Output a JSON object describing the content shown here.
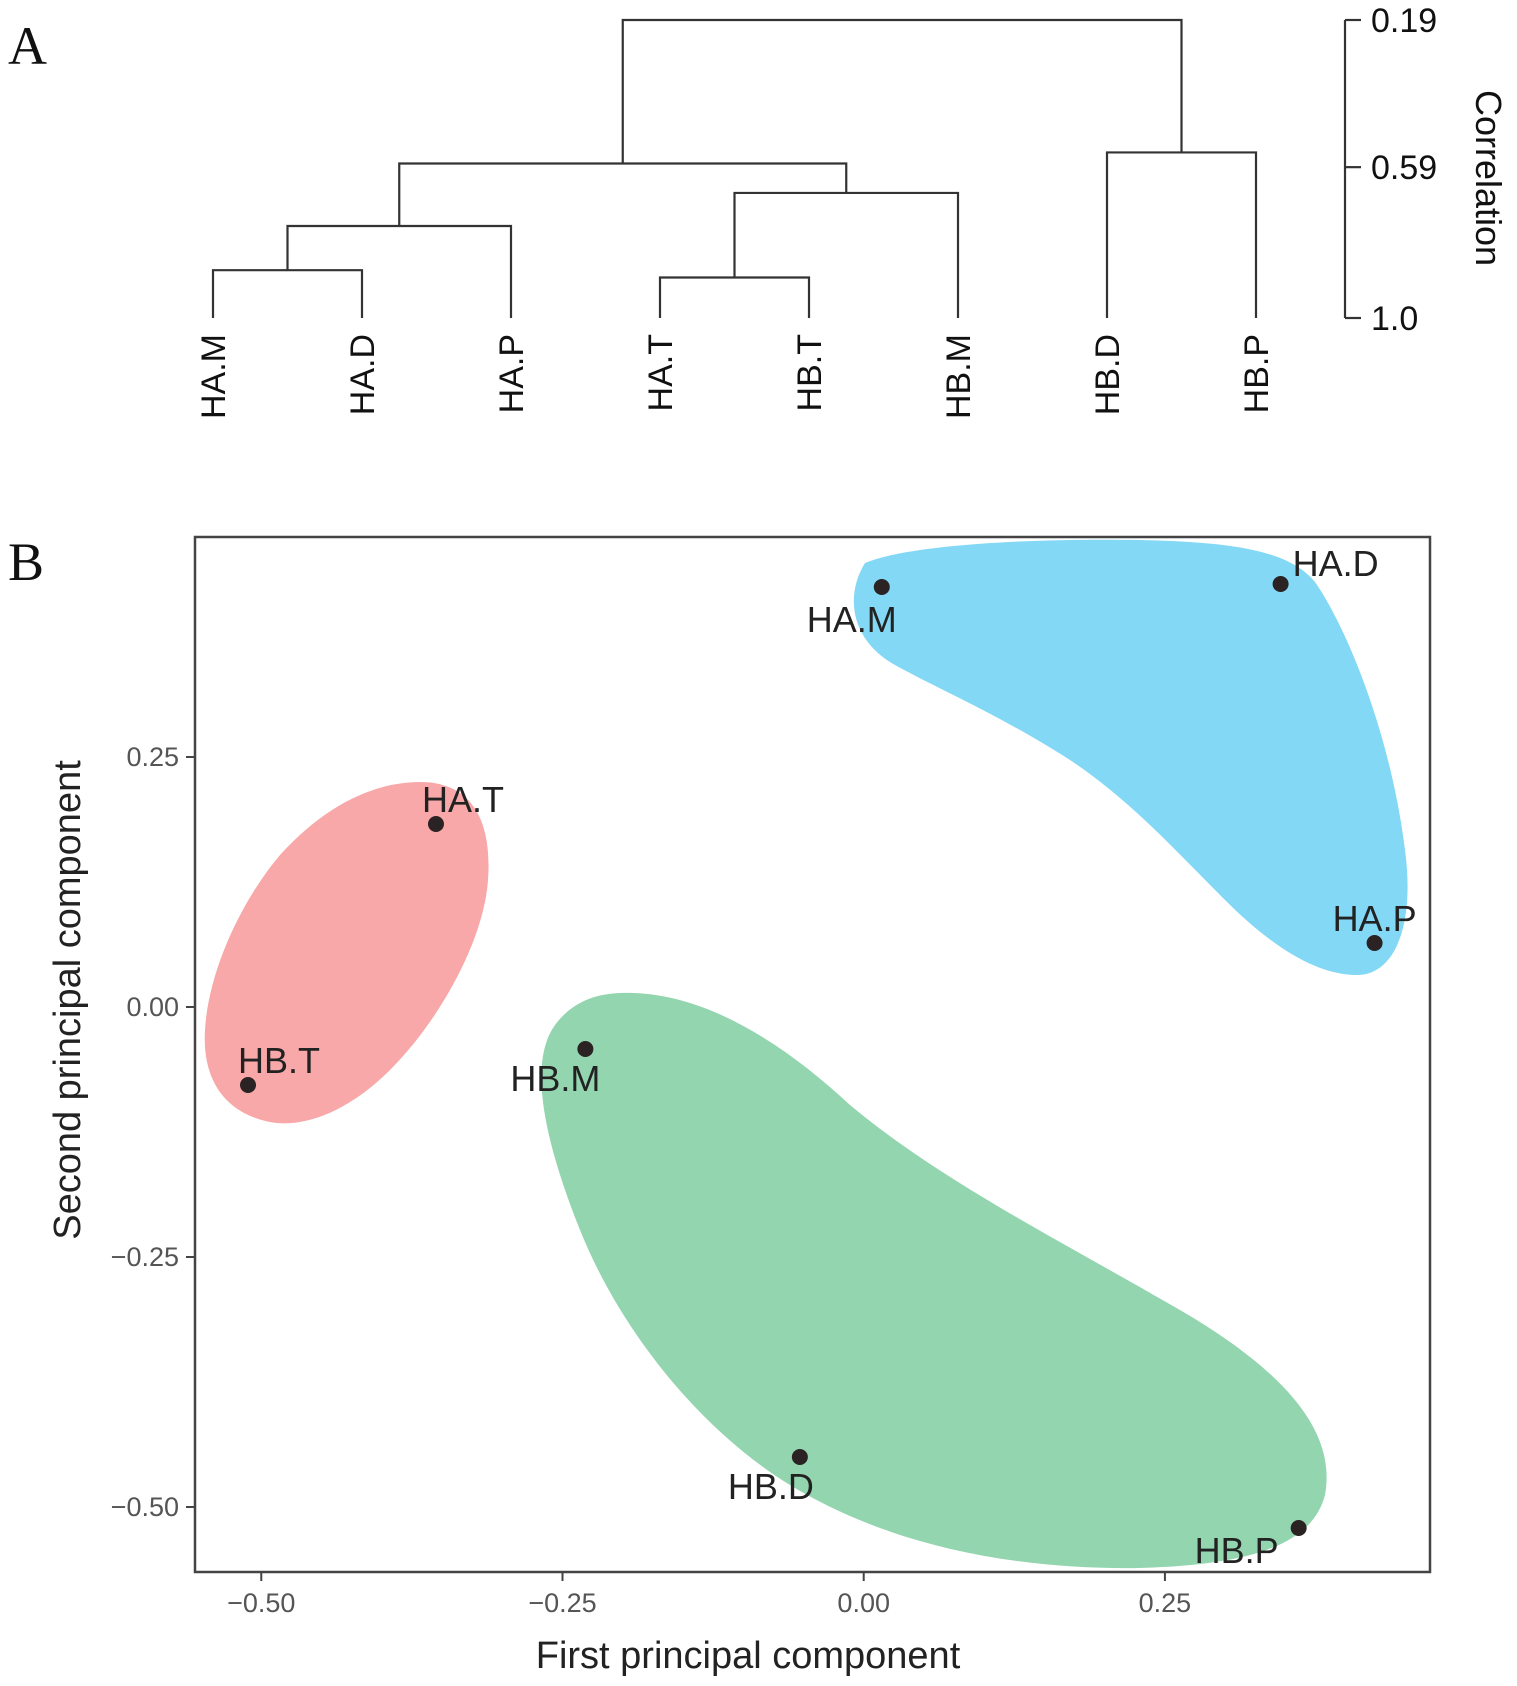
{
  "panel_a": {
    "letter": "A",
    "correlation_axis": {
      "title": "Correlation",
      "ticks": [
        {
          "label": "0.19",
          "value": 0.19
        },
        {
          "label": "0.59",
          "value": 0.59
        },
        {
          "label": "1.0",
          "value": 1.0
        }
      ]
    }
  },
  "panel_b": {
    "letter": "B"
  },
  "chart_data": [
    {
      "type": "dendrogram",
      "leaves": [
        "HA.M",
        "HA.D",
        "HA.P",
        "HA.T",
        "HB.T",
        "HB.M",
        "HB.D",
        "HB.P"
      ],
      "merges": [
        {
          "id": "m1",
          "children": [
            "HA.M",
            "HA.D"
          ],
          "height": 0.87
        },
        {
          "id": "m2",
          "children": [
            "HA.T",
            "HB.T"
          ],
          "height": 0.89
        },
        {
          "id": "m3",
          "children": [
            "m1",
            "HA.P"
          ],
          "height": 0.75
        },
        {
          "id": "m4",
          "children": [
            "m2",
            "HB.M"
          ],
          "height": 0.66
        },
        {
          "id": "m5",
          "children": [
            "HB.D",
            "HB.P"
          ],
          "height": 0.55
        },
        {
          "id": "m6",
          "children": [
            "m3",
            "m4"
          ],
          "height": 0.58
        },
        {
          "id": "m7",
          "children": [
            "m6",
            "m5"
          ],
          "height": 0.19
        }
      ],
      "ylabel": "Correlation",
      "ylim": [
        0.19,
        1.0
      ]
    },
    {
      "type": "scatter",
      "xlabel": "First principal component",
      "ylabel": "Second principal component",
      "xlim": [
        -0.555,
        0.47
      ],
      "ylim": [
        -0.565,
        0.47
      ],
      "xticks": [
        {
          "label": "−0.50",
          "value": -0.5
        },
        {
          "label": "−0.25",
          "value": -0.25
        },
        {
          "label": "0.00",
          "value": 0.0
        },
        {
          "label": "0.25",
          "value": 0.25
        }
      ],
      "yticks": [
        {
          "label": "0.25",
          "value": 0.25
        },
        {
          "label": "0.00",
          "value": 0.0
        },
        {
          "label": "−0.25",
          "value": -0.25
        },
        {
          "label": "−0.50",
          "value": -0.5
        }
      ],
      "points": [
        {
          "label": "HA.M",
          "x": 0.015,
          "y": 0.42,
          "group": "blue"
        },
        {
          "label": "HA.D",
          "x": 0.346,
          "y": 0.423,
          "group": "blue"
        },
        {
          "label": "HA.P",
          "x": 0.424,
          "y": 0.064,
          "group": "blue"
        },
        {
          "label": "HA.T",
          "x": -0.355,
          "y": 0.183,
          "group": "red"
        },
        {
          "label": "HB.T",
          "x": -0.511,
          "y": -0.078,
          "group": "red"
        },
        {
          "label": "HB.M",
          "x": -0.231,
          "y": -0.042,
          "group": "green"
        },
        {
          "label": "HB.D",
          "x": -0.053,
          "y": -0.45,
          "group": "green"
        },
        {
          "label": "HB.P",
          "x": 0.361,
          "y": -0.521,
          "group": "green"
        }
      ],
      "groups": [
        {
          "name": "red",
          "color": "#F8A8A8",
          "members": [
            "HA.T",
            "HB.T"
          ]
        },
        {
          "name": "blue",
          "color": "#82D8F5",
          "members": [
            "HA.M",
            "HA.D",
            "HA.P"
          ]
        },
        {
          "name": "green",
          "color": "#93D5AF",
          "members": [
            "HB.M",
            "HB.D",
            "HB.P"
          ]
        }
      ]
    }
  ]
}
